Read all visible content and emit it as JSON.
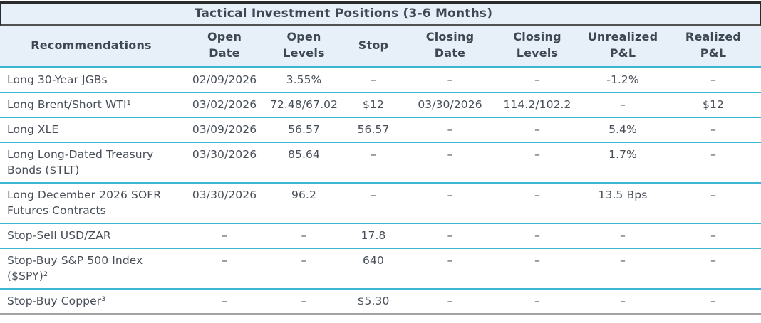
{
  "colors": {
    "header_background": "#e7f0f8",
    "separator_cyan": "#3cb6d3",
    "border_dark": "#2b2b2b",
    "title_underline": "#515151",
    "bottom_border_gray": "#a3a3a3",
    "text": "#474e57",
    "header_text": "#3e4854"
  },
  "chart_data": {
    "type": "table",
    "title": "Tactical Investment Positions (3-6 Months)",
    "columns": [
      {
        "lines": [
          "Recommendations"
        ]
      },
      {
        "lines": [
          "Open",
          "Date"
        ]
      },
      {
        "lines": [
          "Open",
          "Levels"
        ]
      },
      {
        "lines": [
          "Stop"
        ]
      },
      {
        "lines": [
          "Closing",
          "Date"
        ]
      },
      {
        "lines": [
          "Closing",
          "Levels"
        ]
      },
      {
        "lines": [
          "Unrealized",
          "P&L"
        ]
      },
      {
        "lines": [
          "Realized",
          "P&L"
        ]
      }
    ],
    "rows": [
      {
        "cells": [
          "Long 30-Year JGBs",
          "02/09/2026",
          "3.55%",
          "–",
          "–",
          "–",
          "-1.2%",
          "–"
        ]
      },
      {
        "cells": [
          "Long Brent/Short WTI¹",
          "03/02/2026",
          "72.48/67.02",
          "$12",
          "03/30/2026",
          "114.2/102.2",
          "–",
          "$12"
        ]
      },
      {
        "cells": [
          "Long XLE",
          "03/09/2026",
          "56.57",
          "56.57",
          "–",
          "–",
          "5.4%",
          "–"
        ]
      },
      {
        "cells": [
          "Long Long-Dated Treasury Bonds ($TLT)",
          "03/30/2026",
          "85.64",
          "–",
          "–",
          "–",
          "1.7%",
          "–"
        ]
      },
      {
        "cells": [
          "Long December 2026 SOFR Futures Contracts",
          "03/30/2026",
          "96.2",
          "–",
          "–",
          "–",
          "13.5 Bps",
          "–"
        ]
      },
      {
        "cells": [
          "Stop-Sell USD/ZAR",
          "–",
          "–",
          "17.8",
          "–",
          "–",
          "–",
          "–"
        ]
      },
      {
        "cells": [
          "Stop-Buy S&P 500 Index ($SPY)²",
          "–",
          "–",
          "640",
          "–",
          "–",
          "–",
          "–"
        ]
      },
      {
        "cells": [
          "Stop-Buy Copper³",
          "–",
          "–",
          "$5.30",
          "–",
          "–",
          "–",
          "–"
        ]
      }
    ]
  }
}
